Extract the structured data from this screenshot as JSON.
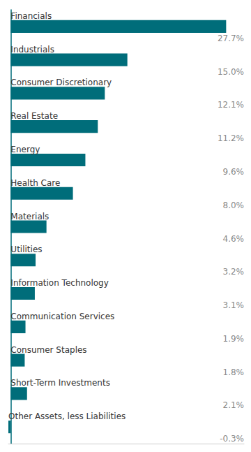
{
  "chart_data": {
    "type": "bar",
    "orientation": "horizontal",
    "categories": [
      "Financials",
      "Industrials",
      "Consumer Discretionary",
      "Real Estate",
      "Energy",
      "Health Care",
      "Materials",
      "Utilities",
      "Information Technology",
      "Communication Services",
      "Consumer Staples",
      "Short-Term Investments",
      "Other Assets, less Liabilities"
    ],
    "values": [
      27.7,
      15.0,
      12.1,
      11.2,
      9.6,
      8.0,
      4.6,
      3.2,
      3.1,
      1.9,
      1.8,
      2.1,
      -0.3
    ],
    "value_labels": [
      "27.7%",
      "15.0%",
      "12.1%",
      "11.2%",
      "9.6%",
      "8.0%",
      "4.6%",
      "3.2%",
      "3.1%",
      "1.9%",
      "1.8%",
      "2.1%",
      "-0.3%"
    ],
    "color": "#006d7a",
    "xlim": [
      -0.3,
      30
    ],
    "tick_labels": false,
    "grid": false
  }
}
